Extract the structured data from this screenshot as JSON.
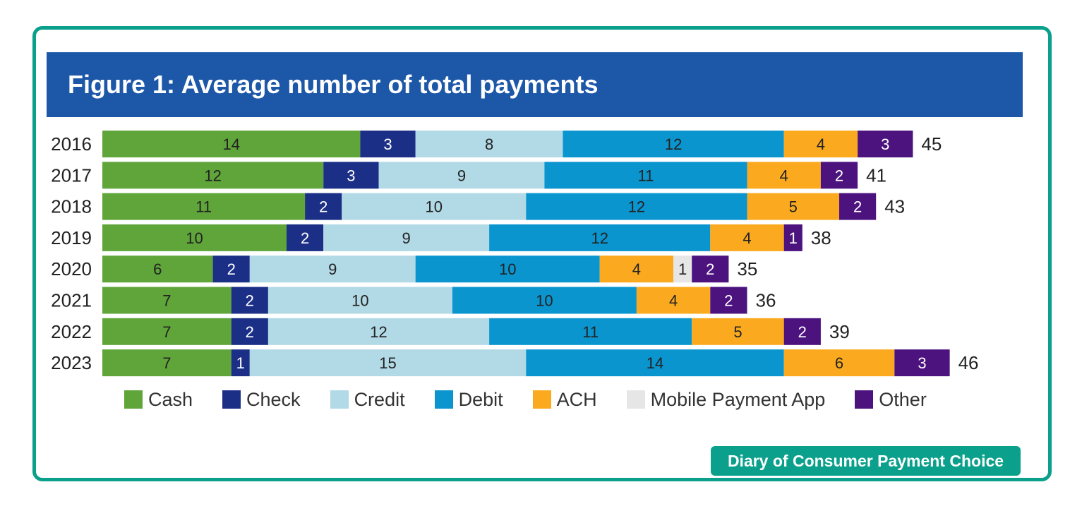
{
  "page": {
    "title": "Figure 1: Average number of total payments",
    "source_badge": "Diary of Consumer Payment Choice"
  },
  "chart_data": {
    "type": "bar",
    "orientation": "horizontal",
    "stacked": true,
    "title": "Figure 1: Average number of total payments",
    "categories": [
      "2016",
      "2017",
      "2018",
      "2019",
      "2020",
      "2021",
      "2022",
      "2023"
    ],
    "series": [
      {
        "name": "Cash",
        "color": "#5fa53a",
        "label_color": "#222222",
        "values": [
          14,
          12,
          11,
          10,
          6,
          7,
          7,
          7
        ]
      },
      {
        "name": "Check",
        "color": "#1b2f86",
        "label_color": "#ffffff",
        "values": [
          3,
          3,
          2,
          2,
          2,
          2,
          2,
          1
        ]
      },
      {
        "name": "Credit",
        "color": "#b2d9e6",
        "label_color": "#222222",
        "values": [
          8,
          9,
          10,
          9,
          9,
          10,
          12,
          15
        ]
      },
      {
        "name": "Debit",
        "color": "#0a95cf",
        "label_color": "#222222",
        "values": [
          12,
          11,
          12,
          12,
          10,
          10,
          11,
          14
        ]
      },
      {
        "name": "ACH",
        "color": "#fbaa1f",
        "label_color": "#222222",
        "values": [
          4,
          4,
          5,
          4,
          4,
          4,
          5,
          6
        ]
      },
      {
        "name": "Mobile Payment App",
        "color": "#e6e6e6",
        "label_color": "#222222",
        "values": [
          0,
          0,
          0,
          0,
          1,
          0,
          0,
          0
        ]
      },
      {
        "name": "Other",
        "color": "#4c137f",
        "label_color": "#ffffff",
        "values": [
          3,
          2,
          2,
          1,
          2,
          2,
          2,
          3
        ]
      }
    ],
    "totals": [
      45,
      41,
      43,
      38,
      35,
      36,
      39,
      46
    ],
    "legend_position": "bottom",
    "grid": false
  }
}
